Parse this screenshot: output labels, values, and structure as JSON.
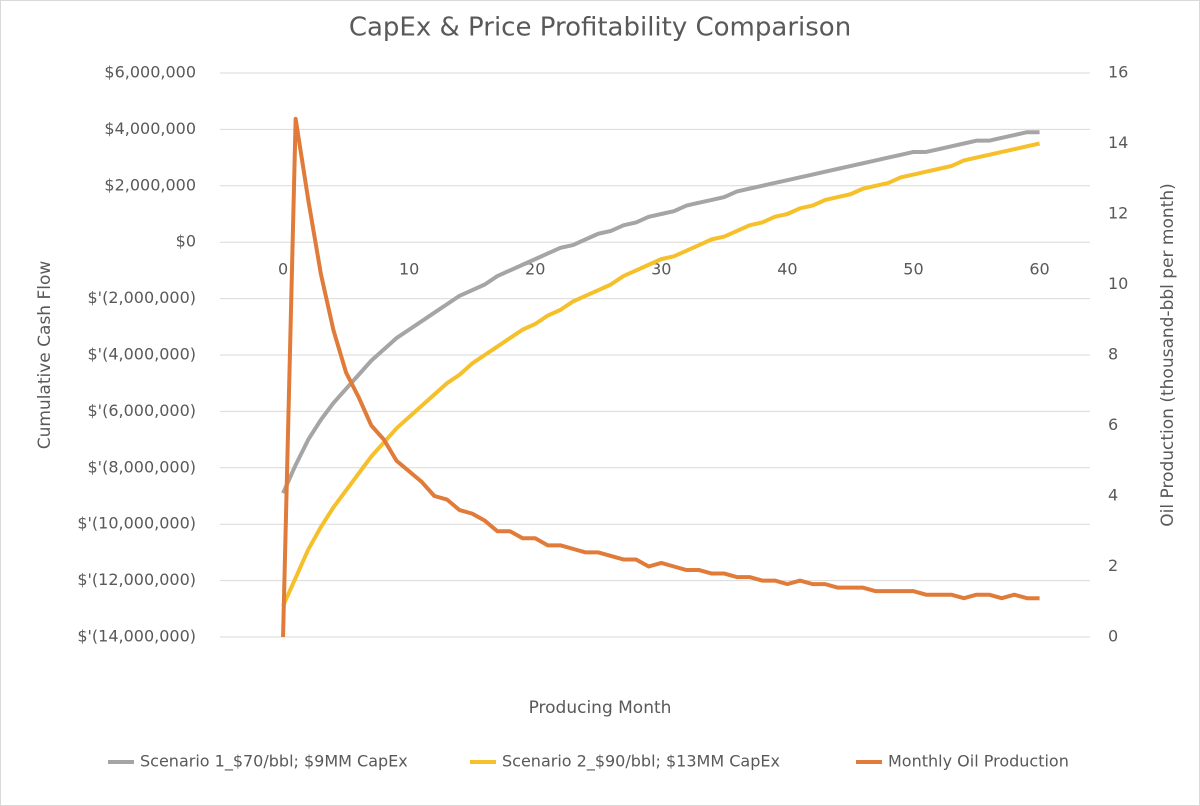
{
  "chart_data": {
    "type": "line",
    "title": "CapEx & Price Profitability Comparison",
    "xlabel": "Producing Month",
    "ylabel": "Cumulative Cash Flow",
    "y2label": "Oil Production (thousand-bbl per month)",
    "x": [
      0,
      1,
      2,
      3,
      4,
      5,
      6,
      7,
      8,
      9,
      10,
      11,
      12,
      13,
      14,
      15,
      16,
      17,
      18,
      19,
      20,
      21,
      22,
      23,
      24,
      25,
      26,
      27,
      28,
      29,
      30,
      31,
      32,
      33,
      34,
      35,
      36,
      37,
      38,
      39,
      40,
      41,
      42,
      43,
      44,
      45,
      46,
      47,
      48,
      49,
      50,
      51,
      52,
      53,
      54,
      55,
      56,
      57,
      58,
      59,
      60
    ],
    "xlim": [
      -5,
      64
    ],
    "xticks": [
      0,
      10,
      20,
      30,
      40,
      50,
      60
    ],
    "ylim": [
      -14000000,
      6000000
    ],
    "yticks": [
      {
        "value": -14000000,
        "label": "$'(14,000,000)"
      },
      {
        "value": -12000000,
        "label": "$'(12,000,000)"
      },
      {
        "value": -10000000,
        "label": "$'(10,000,000)"
      },
      {
        "value": -8000000,
        "label": "$'(8,000,000)"
      },
      {
        "value": -6000000,
        "label": "$'(6,000,000)"
      },
      {
        "value": -4000000,
        "label": "$'(4,000,000)"
      },
      {
        "value": -2000000,
        "label": "$'(2,000,000)"
      },
      {
        "value": 0,
        "label": "$0"
      },
      {
        "value": 2000000,
        "label": "$2,000,000"
      },
      {
        "value": 4000000,
        "label": "$4,000,000"
      },
      {
        "value": 6000000,
        "label": "$6,000,000"
      }
    ],
    "y2lim": [
      0,
      16
    ],
    "y2ticks": [
      0,
      2,
      4,
      6,
      8,
      10,
      12,
      14,
      16
    ],
    "grid": true,
    "legend": "bottom",
    "series": [
      {
        "name": "Scenario 1_$70/bbl; $9MM CapEx",
        "color": "#a5a5a5",
        "values": [
          -8900000,
          -7900000,
          -7000000,
          -6300000,
          -5700000,
          -5200000,
          -4700000,
          -4200000,
          -3800000,
          -3400000,
          -3100000,
          -2800000,
          -2500000,
          -2200000,
          -1900000,
          -1700000,
          -1500000,
          -1200000,
          -1000000,
          -800000,
          -600000,
          -400000,
          -200000,
          -100000,
          100000,
          300000,
          400000,
          600000,
          700000,
          900000,
          1000000,
          1100000,
          1300000,
          1400000,
          1500000,
          1600000,
          1800000,
          1900000,
          2000000,
          2100000,
          2200000,
          2300000,
          2400000,
          2500000,
          2600000,
          2700000,
          2800000,
          2900000,
          3000000,
          3100000,
          3200000,
          3200000,
          3300000,
          3400000,
          3500000,
          3600000,
          3600000,
          3700000,
          3800000,
          3900000,
          3900000
        ]
      },
      {
        "name": "Scenario 2_$90/bbl; $13MM CapEx",
        "color": "#f5c02a",
        "values": [
          -12900000,
          -11900000,
          -10900000,
          -10100000,
          -9400000,
          -8800000,
          -8200000,
          -7600000,
          -7100000,
          -6600000,
          -6200000,
          -5800000,
          -5400000,
          -5000000,
          -4700000,
          -4300000,
          -4000000,
          -3700000,
          -3400000,
          -3100000,
          -2900000,
          -2600000,
          -2400000,
          -2100000,
          -1900000,
          -1700000,
          -1500000,
          -1200000,
          -1000000,
          -800000,
          -600000,
          -500000,
          -300000,
          -100000,
          100000,
          200000,
          400000,
          600000,
          700000,
          900000,
          1000000,
          1200000,
          1300000,
          1500000,
          1600000,
          1700000,
          1900000,
          2000000,
          2100000,
          2300000,
          2400000,
          2500000,
          2600000,
          2700000,
          2900000,
          3000000,
          3100000,
          3200000,
          3300000,
          3400000,
          3500000
        ]
      },
      {
        "name": "Monthly Oil Production",
        "color": "#e07b39",
        "axis": "y2",
        "values": [
          0,
          14.7,
          12.4,
          10.3,
          8.7,
          7.5,
          6.8,
          6.0,
          5.6,
          5.0,
          4.7,
          4.4,
          4.0,
          3.9,
          3.6,
          3.5,
          3.3,
          3.0,
          3.0,
          2.8,
          2.8,
          2.6,
          2.6,
          2.5,
          2.4,
          2.4,
          2.3,
          2.2,
          2.2,
          2.0,
          2.1,
          2.0,
          1.9,
          1.9,
          1.8,
          1.8,
          1.7,
          1.7,
          1.6,
          1.6,
          1.5,
          1.6,
          1.5,
          1.5,
          1.4,
          1.4,
          1.4,
          1.3,
          1.3,
          1.3,
          1.3,
          1.2,
          1.2,
          1.2,
          1.1,
          1.2,
          1.2,
          1.1,
          1.2,
          1.1,
          1.1
        ]
      }
    ]
  }
}
